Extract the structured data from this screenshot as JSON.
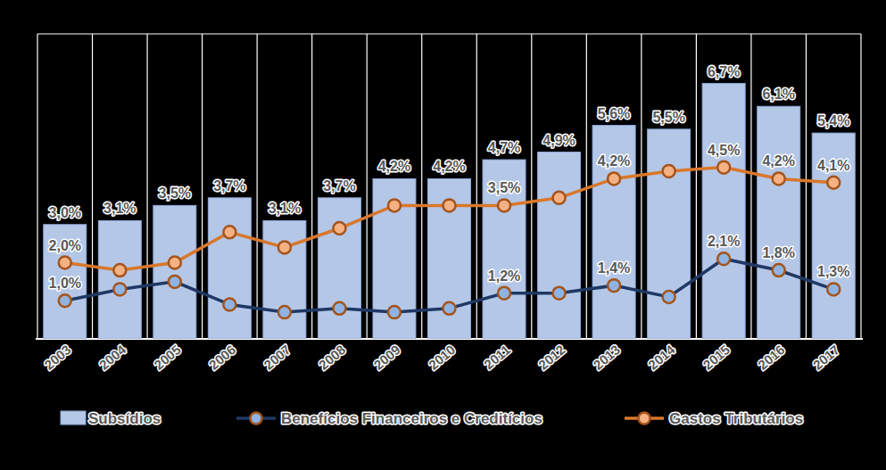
{
  "chart_data": {
    "type": "bar",
    "categories": [
      "2003",
      "2004",
      "2005",
      "2006",
      "2007",
      "2008",
      "2009",
      "2010",
      "2011",
      "2012",
      "2013",
      "2014",
      "2015",
      "2016",
      "2017"
    ],
    "ylim": [
      0,
      8
    ],
    "tick_labels": "x",
    "legend": "bottom",
    "data_labels": true,
    "series": [
      {
        "name": "Subsídios",
        "type": "bar",
        "color": "#b4c7e7",
        "values": [
          3.0,
          3.1,
          3.5,
          3.7,
          3.1,
          3.7,
          4.2,
          4.2,
          4.7,
          4.9,
          5.6,
          5.5,
          6.7,
          6.1,
          5.4
        ],
        "value_labels": [
          "3,0%",
          "3,1%",
          "3,5%",
          "3,7%",
          "3,1%",
          "3,7%",
          "4,2%",
          "4,2%",
          "4,7%",
          "4,9%",
          "5,6%",
          "5,5%",
          "6,7%",
          "6,1%",
          "5,4%"
        ]
      },
      {
        "name": "Benefícios Financeiros e Creditícios",
        "type": "line",
        "color": "#1f3864",
        "marker": "circle",
        "values": [
          1.0,
          1.3,
          1.5,
          0.9,
          0.7,
          0.8,
          0.7,
          0.8,
          1.2,
          1.2,
          1.4,
          1.1,
          2.1,
          1.8,
          1.3
        ],
        "value_labels": [
          "1,0%",
          null,
          null,
          null,
          null,
          null,
          null,
          null,
          "1,2%",
          null,
          "1,4%",
          null,
          "2,1%",
          "1,8%",
          "1,3%"
        ]
      },
      {
        "name": "Gastos Tributários",
        "type": "line",
        "color": "#d9772b",
        "marker": "circle",
        "values": [
          2.0,
          1.8,
          2.0,
          2.8,
          2.4,
          2.9,
          3.5,
          3.5,
          3.5,
          3.7,
          4.2,
          4.4,
          4.5,
          4.2,
          4.1
        ],
        "value_labels": [
          "2,0%",
          null,
          null,
          null,
          null,
          null,
          null,
          null,
          "3,5%",
          null,
          "4,2%",
          null,
          "4,5%",
          "4,2%",
          "4,1%"
        ]
      }
    ]
  }
}
